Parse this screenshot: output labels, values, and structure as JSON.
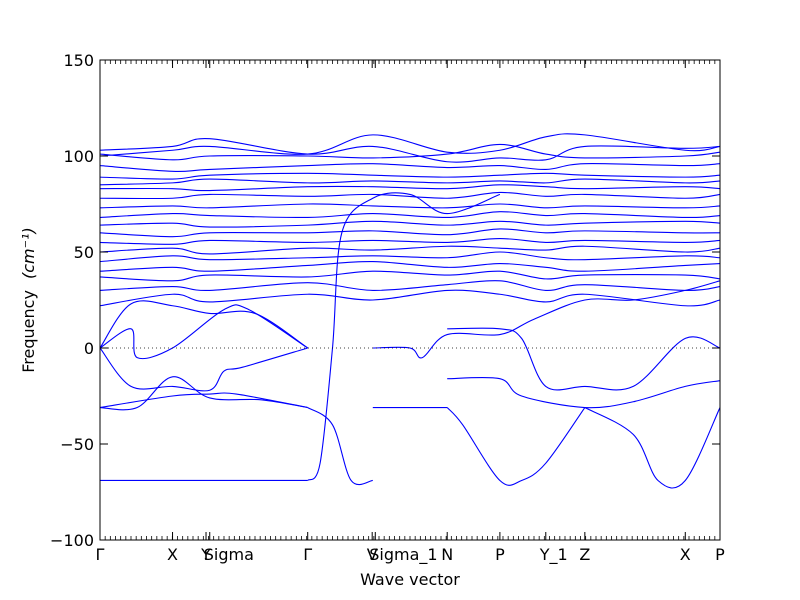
{
  "chart_data": {
    "type": "line",
    "title": "",
    "xlabel": "Wave vector",
    "ylabel": "Frequency",
    "ylabel_unit": "(cm⁻¹)",
    "ylim": [
      -100,
      150
    ],
    "yticks": [
      -100,
      -50,
      0,
      50,
      100,
      150
    ],
    "ytick_labels": [
      "−100",
      "−50",
      "0",
      "50",
      "100",
      "150"
    ],
    "xlim": [
      0,
      1
    ],
    "grid": false,
    "zero_line": true,
    "line_color": "#0000ff",
    "high_symmetry_points": [
      {
        "label": "Γ",
        "x": 0.0
      },
      {
        "label": "X",
        "x": 0.117
      },
      {
        "label": "Y",
        "x": 0.171
      },
      {
        "label": "Sigma",
        "x": 0.177
      },
      {
        "label": "Γ",
        "x": 0.335
      },
      {
        "label": "V",
        "x": 0.439
      },
      {
        "label": "Sigma_1",
        "x": 0.444
      },
      {
        "label": "N",
        "x": 0.56
      },
      {
        "label": "P",
        "x": 0.645
      },
      {
        "label": "Y_1",
        "x": 0.719
      },
      {
        "label": "Z",
        "x": 0.782
      },
      {
        "label": "X",
        "x": 0.944
      },
      {
        "label": "P",
        "x": 1.0
      }
    ],
    "series": [
      {
        "values": [
          [
            0,
            -69
          ],
          [
            0.335,
            -69
          ]
        ]
      },
      {
        "values": [
          [
            0.335,
            -69
          ],
          [
            0.355,
            -60
          ],
          [
            0.375,
            0
          ],
          [
            0.39,
            60
          ],
          [
            0.44,
            78
          ],
          [
            0.5,
            80
          ],
          [
            0.56,
            70
          ],
          [
            0.645,
            80
          ]
        ]
      },
      {
        "values": [
          [
            0.335,
            -31
          ],
          [
            0.375,
            -40
          ],
          [
            0.405,
            -69
          ],
          [
            0.44,
            -69
          ]
        ]
      },
      {
        "values": [
          [
            0.44,
            -31
          ],
          [
            0.56,
            -31
          ]
        ]
      },
      {
        "values": [
          [
            0.56,
            -31
          ],
          [
            0.585,
            -40
          ],
          [
            0.645,
            -69
          ],
          [
            0.68,
            -69
          ],
          [
            0.719,
            -60
          ],
          [
            0.782,
            -31
          ]
        ]
      },
      {
        "values": [
          [
            0.782,
            -31
          ],
          [
            0.86,
            -45
          ],
          [
            0.9,
            -69
          ],
          [
            0.944,
            -69
          ],
          [
            1.0,
            -31
          ]
        ]
      },
      {
        "values": [
          [
            0,
            -31
          ],
          [
            0.117,
            -25
          ],
          [
            0.177,
            -24
          ],
          [
            0.22,
            -24
          ],
          [
            0.335,
            -31
          ]
        ]
      },
      {
        "values": [
          [
            0,
            -31
          ],
          [
            0.06,
            -31
          ],
          [
            0.117,
            -15
          ],
          [
            0.177,
            -26
          ],
          [
            0.26,
            -27
          ],
          [
            0.335,
            -31
          ]
        ]
      },
      {
        "values": [
          [
            0,
            0
          ],
          [
            0.05,
            -20
          ],
          [
            0.117,
            -20
          ],
          [
            0.177,
            -22
          ],
          [
            0.2,
            -12
          ],
          [
            0.23,
            -10
          ],
          [
            0.335,
            0
          ]
        ]
      },
      {
        "values": [
          [
            0,
            0
          ],
          [
            0.05,
            10
          ],
          [
            0.06,
            -5
          ],
          [
            0.117,
            0
          ],
          [
            0.2,
            20
          ],
          [
            0.24,
            20
          ],
          [
            0.335,
            0
          ]
        ]
      },
      {
        "values": [
          [
            0,
            0
          ],
          [
            0.05,
            23
          ],
          [
            0.117,
            22
          ],
          [
            0.177,
            18
          ],
          [
            0.25,
            18
          ],
          [
            0.335,
            0
          ]
        ]
      },
      {
        "values": [
          [
            0.56,
            -16
          ],
          [
            0.645,
            -16
          ],
          [
            0.68,
            -25
          ],
          [
            0.782,
            -31
          ],
          [
            0.86,
            -28
          ],
          [
            0.944,
            -20
          ],
          [
            1.0,
            -17
          ]
        ]
      },
      {
        "values": [
          [
            0.56,
            10
          ],
          [
            0.645,
            10
          ],
          [
            0.68,
            5
          ],
          [
            0.719,
            -20
          ],
          [
            0.782,
            -20
          ],
          [
            0.86,
            -20
          ],
          [
            0.944,
            5
          ],
          [
            1.0,
            0
          ]
        ]
      },
      {
        "values": [
          [
            0.44,
            0
          ],
          [
            0.5,
            0
          ],
          [
            0.52,
            -5
          ],
          [
            0.56,
            7
          ],
          [
            0.645,
            7
          ],
          [
            0.7,
            15
          ],
          [
            0.782,
            25
          ],
          [
            0.86,
            25
          ],
          [
            0.944,
            30
          ],
          [
            1.0,
            35
          ]
        ]
      },
      {
        "values": [
          [
            0,
            22
          ],
          [
            0.117,
            28
          ],
          [
            0.177,
            24
          ],
          [
            0.335,
            28
          ],
          [
            0.44,
            25
          ],
          [
            0.56,
            30
          ],
          [
            0.645,
            28
          ],
          [
            0.719,
            24
          ],
          [
            0.782,
            28
          ],
          [
            0.944,
            22
          ],
          [
            1.0,
            25
          ]
        ]
      },
      {
        "values": [
          [
            0,
            30
          ],
          [
            0.117,
            32
          ],
          [
            0.177,
            30
          ],
          [
            0.335,
            34
          ],
          [
            0.44,
            30
          ],
          [
            0.56,
            33
          ],
          [
            0.645,
            35
          ],
          [
            0.719,
            30
          ],
          [
            0.782,
            33
          ],
          [
            0.944,
            30
          ],
          [
            1.0,
            32
          ]
        ]
      },
      {
        "values": [
          [
            0,
            37
          ],
          [
            0.117,
            35
          ],
          [
            0.177,
            38
          ],
          [
            0.335,
            37
          ],
          [
            0.44,
            40
          ],
          [
            0.56,
            38
          ],
          [
            0.645,
            40
          ],
          [
            0.719,
            36
          ],
          [
            0.782,
            38
          ],
          [
            0.944,
            38
          ],
          [
            1.0,
            36
          ]
        ]
      },
      {
        "values": [
          [
            0,
            40
          ],
          [
            0.117,
            42
          ],
          [
            0.177,
            40
          ],
          [
            0.335,
            43
          ],
          [
            0.44,
            45
          ],
          [
            0.56,
            42
          ],
          [
            0.645,
            44
          ],
          [
            0.719,
            42
          ],
          [
            0.782,
            40
          ],
          [
            0.944,
            43
          ],
          [
            1.0,
            44
          ]
        ]
      },
      {
        "values": [
          [
            0,
            45
          ],
          [
            0.117,
            48
          ],
          [
            0.177,
            46
          ],
          [
            0.335,
            47
          ],
          [
            0.44,
            48
          ],
          [
            0.56,
            47
          ],
          [
            0.645,
            50
          ],
          [
            0.719,
            47
          ],
          [
            0.782,
            46
          ],
          [
            0.944,
            48
          ],
          [
            1.0,
            47
          ]
        ]
      },
      {
        "values": [
          [
            0,
            50
          ],
          [
            0.117,
            52
          ],
          [
            0.177,
            49
          ],
          [
            0.335,
            52
          ],
          [
            0.44,
            51
          ],
          [
            0.56,
            53
          ],
          [
            0.645,
            52
          ],
          [
            0.719,
            51
          ],
          [
            0.782,
            53
          ],
          [
            0.944,
            50
          ],
          [
            1.0,
            52
          ]
        ]
      },
      {
        "values": [
          [
            0,
            55
          ],
          [
            0.117,
            54
          ],
          [
            0.177,
            56
          ],
          [
            0.335,
            55
          ],
          [
            0.44,
            56
          ],
          [
            0.56,
            55
          ],
          [
            0.645,
            57
          ],
          [
            0.719,
            55
          ],
          [
            0.782,
            56
          ],
          [
            0.944,
            55
          ],
          [
            1.0,
            56
          ]
        ]
      },
      {
        "values": [
          [
            0,
            60
          ],
          [
            0.117,
            58
          ],
          [
            0.177,
            60
          ],
          [
            0.335,
            60
          ],
          [
            0.44,
            61
          ],
          [
            0.56,
            59
          ],
          [
            0.645,
            62
          ],
          [
            0.719,
            60
          ],
          [
            0.782,
            61
          ],
          [
            0.944,
            60
          ],
          [
            1.0,
            60
          ]
        ]
      },
      {
        "values": [
          [
            0,
            64
          ],
          [
            0.117,
            65
          ],
          [
            0.177,
            63
          ],
          [
            0.335,
            64
          ],
          [
            0.44,
            66
          ],
          [
            0.56,
            64
          ],
          [
            0.645,
            66
          ],
          [
            0.719,
            64
          ],
          [
            0.782,
            65
          ],
          [
            0.944,
            66
          ],
          [
            1.0,
            65
          ]
        ]
      },
      {
        "values": [
          [
            0,
            68
          ],
          [
            0.117,
            70
          ],
          [
            0.177,
            69
          ],
          [
            0.335,
            68
          ],
          [
            0.44,
            70
          ],
          [
            0.56,
            68
          ],
          [
            0.645,
            71
          ],
          [
            0.719,
            69
          ],
          [
            0.782,
            70
          ],
          [
            0.944,
            68
          ],
          [
            1.0,
            69
          ]
        ]
      },
      {
        "values": [
          [
            0,
            73
          ],
          [
            0.117,
            74
          ],
          [
            0.177,
            73
          ],
          [
            0.335,
            75
          ],
          [
            0.44,
            74
          ],
          [
            0.56,
            73
          ],
          [
            0.645,
            75
          ],
          [
            0.719,
            73
          ],
          [
            0.782,
            74
          ],
          [
            0.944,
            73
          ],
          [
            1.0,
            74
          ]
        ]
      },
      {
        "values": [
          [
            0,
            78
          ],
          [
            0.117,
            78
          ],
          [
            0.177,
            80
          ],
          [
            0.335,
            79
          ],
          [
            0.44,
            80
          ],
          [
            0.56,
            78
          ],
          [
            0.645,
            81
          ],
          [
            0.719,
            79
          ],
          [
            0.782,
            80
          ],
          [
            0.944,
            78
          ],
          [
            1.0,
            80
          ]
        ]
      },
      {
        "values": [
          [
            0,
            83
          ],
          [
            0.117,
            83
          ],
          [
            0.177,
            82
          ],
          [
            0.335,
            84
          ],
          [
            0.44,
            84
          ],
          [
            0.56,
            83
          ],
          [
            0.645,
            85
          ],
          [
            0.719,
            84
          ],
          [
            0.782,
            83
          ],
          [
            0.944,
            84
          ],
          [
            1.0,
            83
          ]
        ]
      },
      {
        "values": [
          [
            0,
            85
          ],
          [
            0.117,
            86
          ],
          [
            0.177,
            88
          ],
          [
            0.335,
            86
          ],
          [
            0.44,
            87
          ],
          [
            0.56,
            86
          ],
          [
            0.645,
            87
          ],
          [
            0.719,
            86
          ],
          [
            0.782,
            88
          ],
          [
            0.944,
            86
          ],
          [
            1.0,
            87
          ]
        ]
      },
      {
        "values": [
          [
            0,
            89
          ],
          [
            0.117,
            88
          ],
          [
            0.177,
            90
          ],
          [
            0.335,
            91
          ],
          [
            0.44,
            90
          ],
          [
            0.56,
            89
          ],
          [
            0.645,
            90
          ],
          [
            0.719,
            91
          ],
          [
            0.782,
            90
          ],
          [
            0.944,
            89
          ],
          [
            1.0,
            90
          ]
        ]
      },
      {
        "values": [
          [
            0,
            95
          ],
          [
            0.117,
            92
          ],
          [
            0.177,
            93
          ],
          [
            0.335,
            95
          ],
          [
            0.44,
            96
          ],
          [
            0.56,
            94
          ],
          [
            0.645,
            95
          ],
          [
            0.719,
            93
          ],
          [
            0.782,
            96
          ],
          [
            0.944,
            95
          ],
          [
            1.0,
            96
          ]
        ]
      },
      {
        "values": [
          [
            0,
            100
          ],
          [
            0.117,
            103
          ],
          [
            0.177,
            105
          ],
          [
            0.335,
            101
          ],
          [
            0.44,
            111
          ],
          [
            0.56,
            102
          ],
          [
            0.645,
            103
          ],
          [
            0.719,
            110
          ],
          [
            0.782,
            111
          ],
          [
            0.944,
            103
          ],
          [
            1.0,
            105
          ]
        ]
      },
      {
        "values": [
          [
            0,
            101
          ],
          [
            0.117,
            98
          ],
          [
            0.177,
            100
          ],
          [
            0.335,
            100
          ],
          [
            0.44,
            99
          ],
          [
            0.56,
            101
          ],
          [
            0.645,
            106
          ],
          [
            0.719,
            101
          ],
          [
            0.782,
            99
          ],
          [
            0.944,
            100
          ],
          [
            1.0,
            102
          ]
        ]
      },
      {
        "values": [
          [
            0,
            103
          ],
          [
            0.117,
            105
          ],
          [
            0.177,
            109
          ],
          [
            0.335,
            101
          ],
          [
            0.44,
            105
          ],
          [
            0.56,
            97
          ],
          [
            0.645,
            99
          ],
          [
            0.719,
            98
          ],
          [
            0.782,
            105
          ],
          [
            0.944,
            104
          ],
          [
            1.0,
            105
          ]
        ]
      }
    ]
  }
}
